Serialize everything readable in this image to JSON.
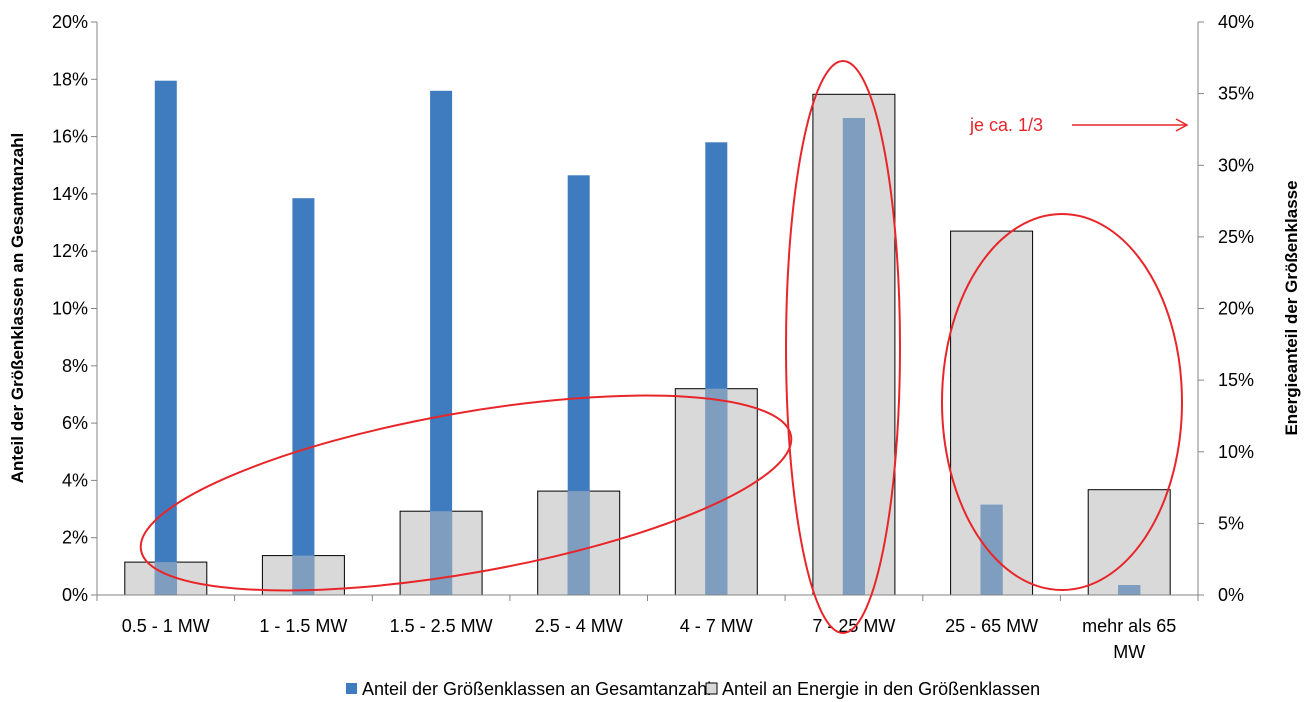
{
  "chart_data": {
    "type": "bar",
    "categories": [
      "0.5 - 1 MW",
      "1 - 1.5 MW",
      "1.5 - 2.5 MW",
      "2.5 - 4 MW",
      "4 - 7 MW",
      "7 - 25 MW",
      "25 - 65 MW",
      "mehr als 65 MW"
    ],
    "series": [
      {
        "name": "Anteil der Größenklassen an Gesamtanzahl",
        "axis": "left",
        "values": [
          17.95,
          13.85,
          17.6,
          14.65,
          15.8,
          16.65,
          3.15,
          0.35
        ],
        "color": "#3f7bbf"
      },
      {
        "name": "Anteil an Energie in den Größenklassen",
        "axis": "right",
        "values": [
          2.3,
          2.75,
          5.85,
          7.25,
          14.4,
          34.95,
          25.4,
          7.35
        ],
        "color": "#d9d9d9"
      }
    ],
    "ylabel": "Anteil der Größenklassen an Gesamtanzahl",
    "y2label": "Energieanteil der Größenklasse",
    "ylim": [
      0,
      20
    ],
    "y2lim": [
      0,
      40
    ],
    "yticks": [
      "0%",
      "2%",
      "4%",
      "6%",
      "8%",
      "10%",
      "12%",
      "14%",
      "16%",
      "18%",
      "20%"
    ],
    "y2ticks": [
      "0%",
      "5%",
      "10%",
      "15%",
      "20%",
      "25%",
      "30%",
      "35%",
      "40%"
    ],
    "legend_position": "bottom",
    "grid": false,
    "annotations": [
      {
        "text": "je ca. 1/3",
        "color": "#e8262a"
      }
    ]
  }
}
